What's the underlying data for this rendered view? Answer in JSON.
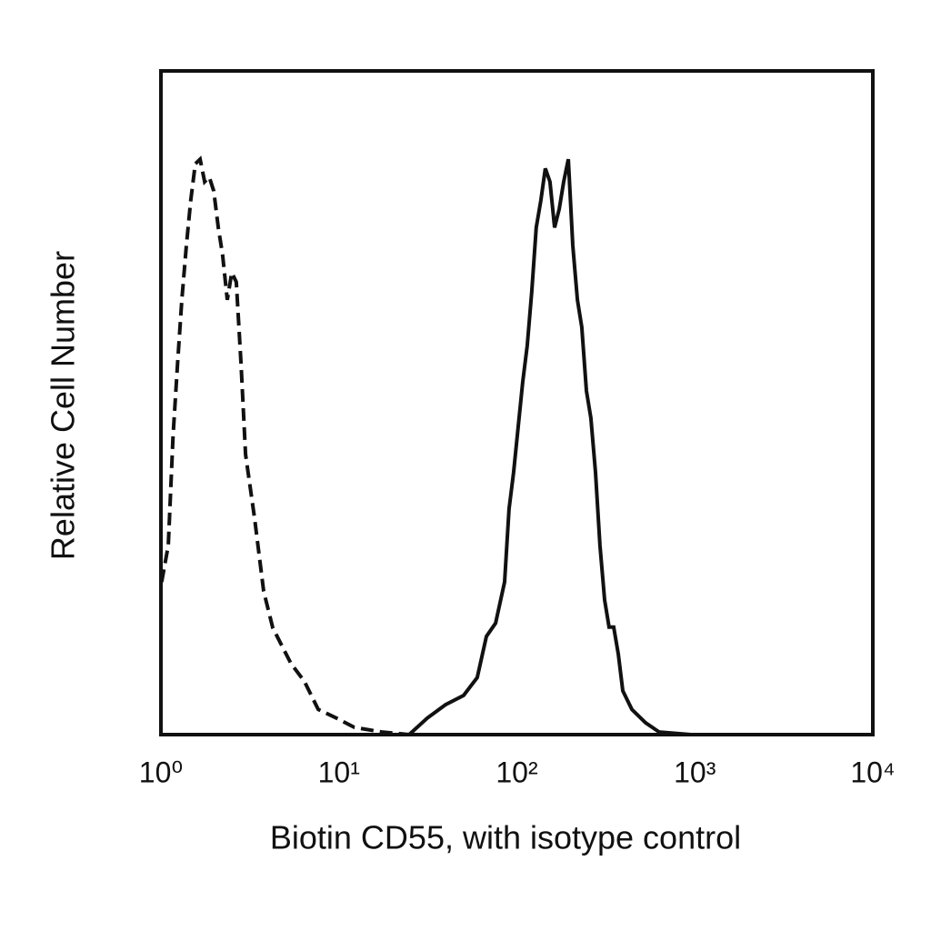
{
  "chart_data": {
    "type": "line",
    "x_label": "Biotin CD55, with isotype control",
    "y_label": "Relative Cell Number",
    "xscale": "log",
    "xlim": [
      1,
      10000
    ],
    "xticks": [
      {
        "value": 1,
        "label": "10⁰"
      },
      {
        "value": 10,
        "label": "10¹"
      },
      {
        "value": 100,
        "label": "10²"
      },
      {
        "value": 1000,
        "label": "10³"
      },
      {
        "value": 10000,
        "label": "10⁴"
      }
    ],
    "ylim": [
      0,
      100
    ],
    "grid": false,
    "series": [
      {
        "color": "#111111",
        "dash": "dashed",
        "x": [
          1.01,
          1.1,
          1.17,
          1.24,
          1.31,
          1.39,
          1.47,
          1.56,
          1.66,
          1.76,
          1.87,
          1.98,
          2.1,
          2.22,
          2.36,
          2.5,
          2.65,
          2.82,
          2.99,
          3.36,
          3.78,
          4.25,
          4.78,
          5.38,
          6.41,
          7.65,
          9.68,
          12.2,
          17.4,
          24.8
        ],
        "values": [
          23.0,
          28.5,
          44.9,
          55.9,
          65.5,
          73.7,
          80.5,
          86.0,
          86.7,
          83.3,
          84.0,
          81.9,
          76.4,
          72.3,
          65.5,
          69.6,
          68.2,
          55.9,
          42.2,
          32.6,
          21.6,
          16.1,
          13.4,
          10.7,
          8.0,
          3.8,
          2.5,
          1.1,
          0.4,
          0
        ]
      },
      {
        "color": "#111111",
        "dash": "solid",
        "x": [
          24.8,
          31.4,
          39.7,
          50.2,
          59.9,
          67.4,
          75.9,
          85.3,
          90.4,
          95.9,
          101.7,
          107.9,
          114.3,
          121.3,
          128.5,
          136.4,
          144.5,
          153.5,
          162.9,
          173.0,
          183.2,
          194.5,
          206.1,
          218.8,
          231.7,
          246.0,
          260.6,
          276.7,
          293.1,
          311.2,
          329.6,
          349.9,
          371.5,
          393.6,
          442.6,
          528.4,
          629.5,
          950.6
        ],
        "values": [
          0,
          2.5,
          4.5,
          5.9,
          8.6,
          14.8,
          16.8,
          23.0,
          34.0,
          39.5,
          46.3,
          53.2,
          58.6,
          66.8,
          76.4,
          80.5,
          85.3,
          83.3,
          76.4,
          79.2,
          83.3,
          86.7,
          73.7,
          65.5,
          61.4,
          51.8,
          47.7,
          39.5,
          28.5,
          20.3,
          16.2,
          16.2,
          12.1,
          6.6,
          3.8,
          1.8,
          0.4,
          0
        ]
      }
    ]
  }
}
